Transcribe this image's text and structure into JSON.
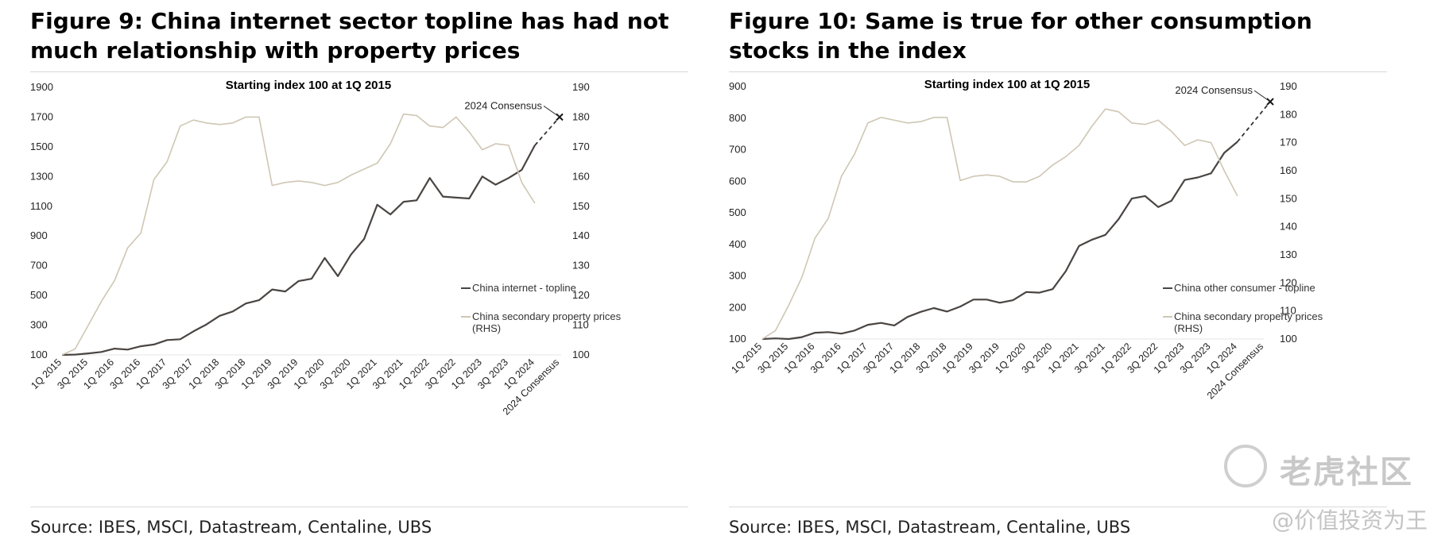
{
  "figures": [
    {
      "title": "Figure 9: China internet sector topline has had not much relationship with property prices",
      "source": "Source: IBES, MSCI, Datastream, Centaline, UBS"
    },
    {
      "title": "Figure 10: Same is true for other consumption stocks in the index",
      "source": "Source: IBES, MSCI, Datastream, Centaline, UBS"
    }
  ],
  "watermark": {
    "brand": "老虎社区",
    "handle": "@价值投资为王"
  },
  "chart_data": [
    {
      "type": "line",
      "title": "Starting index 100 at 1Q 2015",
      "xlabel": "",
      "ylabel": "",
      "ylim": [
        100,
        1900
      ],
      "yticks": [
        100,
        300,
        500,
        700,
        900,
        1100,
        1300,
        1500,
        1700,
        1900
      ],
      "y2lim": [
        100,
        190
      ],
      "y2ticks": [
        100,
        110,
        120,
        130,
        140,
        150,
        160,
        170,
        180,
        190
      ],
      "x_labels": [
        "1Q 2015",
        "3Q 2015",
        "1Q 2016",
        "3Q 2016",
        "1Q 2017",
        "3Q 2017",
        "1Q 2018",
        "3Q 2018",
        "1Q 2019",
        "3Q 2019",
        "1Q 2020",
        "3Q 2020",
        "1Q 2021",
        "3Q 2021",
        "1Q 2022",
        "3Q 2022",
        "1Q 2023",
        "3Q 2023",
        "1Q 2024",
        "2024 Consensus"
      ],
      "grid": false,
      "legend_position": "right",
      "annotation": "2024 Consensus",
      "series": [
        {
          "name": "China internet - topline",
          "axis": "left",
          "color": "#4a4542",
          "values": [
            100,
            102,
            110,
            120,
            142,
            136,
            158,
            170,
            200,
            205,
            258,
            305,
            363,
            392,
            446,
            468,
            540,
            527,
            596,
            612,
            752,
            630,
            775,
            880,
            1110,
            1045,
            1130,
            1140,
            1290,
            1165,
            1158,
            1152,
            1300,
            1245,
            1290,
            1345,
            1510
          ]
        },
        {
          "name": "China secondary property prices (RHS)",
          "axis": "right",
          "color": "#cfc7b4",
          "values": [
            100,
            102,
            110,
            118,
            125,
            136,
            141,
            159,
            165,
            177,
            179,
            178,
            177.5,
            178,
            180,
            180,
            157,
            158,
            158.5,
            158,
            157,
            158,
            160.5,
            162.5,
            164.5,
            171,
            181,
            180.5,
            177,
            176.5,
            180,
            175,
            169,
            171,
            170.5,
            158,
            151
          ]
        }
      ],
      "consensus": {
        "from_index": 36,
        "from_value": 1510,
        "value": 1700
      }
    },
    {
      "type": "line",
      "title": "Starting index 100 at 1Q 2015",
      "xlabel": "",
      "ylabel": "",
      "ylim": [
        100,
        900
      ],
      "yticks": [
        100,
        200,
        300,
        400,
        500,
        600,
        700,
        800,
        900
      ],
      "y2lim": [
        100,
        190
      ],
      "y2ticks": [
        100,
        110,
        120,
        130,
        140,
        150,
        160,
        170,
        180,
        190
      ],
      "x_labels": [
        "1Q 2015",
        "3Q 2015",
        "1Q 2016",
        "3Q 2016",
        "1Q 2017",
        "3Q 2017",
        "1Q 2018",
        "3Q 2018",
        "1Q 2019",
        "3Q 2019",
        "1Q 2020",
        "3Q 2020",
        "1Q 2021",
        "3Q 2021",
        "1Q 2022",
        "3Q 2022",
        "1Q 2023",
        "3Q 2023",
        "1Q 2024",
        "2024 Consensus"
      ],
      "grid": false,
      "legend_position": "right",
      "annotation": "2024 Consensus",
      "series": [
        {
          "name": "China other consumer - topline",
          "axis": "left",
          "color": "#4a4542",
          "values": [
            100,
            102,
            100,
            106,
            120,
            122,
            117,
            127,
            145,
            151,
            143,
            170,
            186,
            198,
            187,
            203,
            225,
            225,
            215,
            223,
            249,
            247,
            258,
            315,
            395,
            415,
            430,
            480,
            545,
            553,
            518,
            538,
            604,
            612,
            625,
            690,
            725
          ]
        },
        {
          "name": "China secondary property prices (RHS)",
          "axis": "right",
          "color": "#cfc7b4",
          "values": [
            100,
            103,
            112,
            122,
            136,
            143,
            158,
            166,
            177,
            179,
            178,
            177,
            177.5,
            179,
            179,
            156.5,
            158,
            158.5,
            158,
            156,
            156,
            158,
            162,
            165,
            169,
            176,
            182,
            181,
            177,
            176.5,
            178,
            174,
            169,
            171,
            170,
            160,
            151
          ]
        }
      ],
      "consensus": {
        "from_index": 36,
        "from_value": 725,
        "value": 852
      }
    }
  ]
}
